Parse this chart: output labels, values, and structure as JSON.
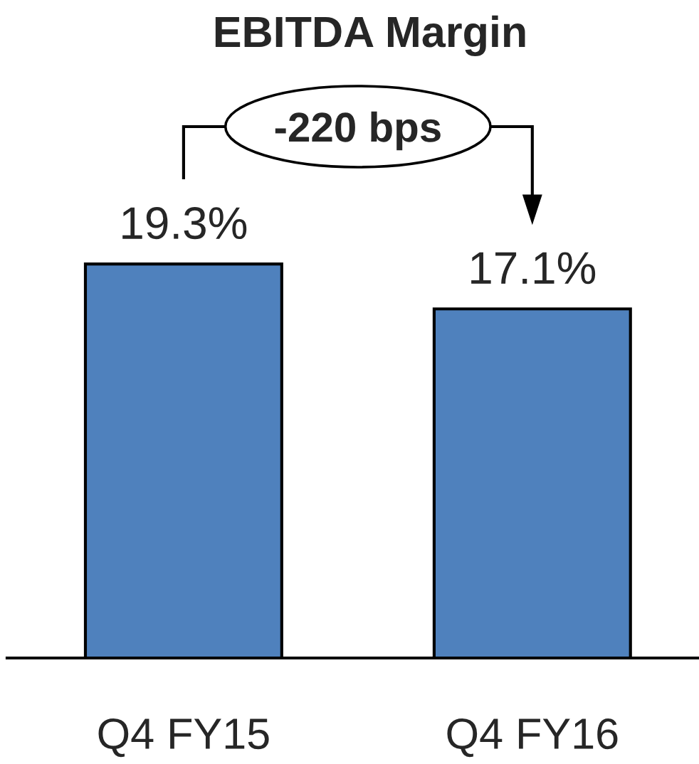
{
  "chart_data": {
    "type": "bar",
    "title": "EBITDA Margin",
    "categories": [
      "Q4 FY15",
      "Q4 FY16"
    ],
    "values": [
      19.3,
      17.1
    ],
    "value_labels": [
      "19.3%",
      "17.1%"
    ],
    "color": "#4f81bd",
    "annotations": [
      "-220 bps"
    ]
  }
}
